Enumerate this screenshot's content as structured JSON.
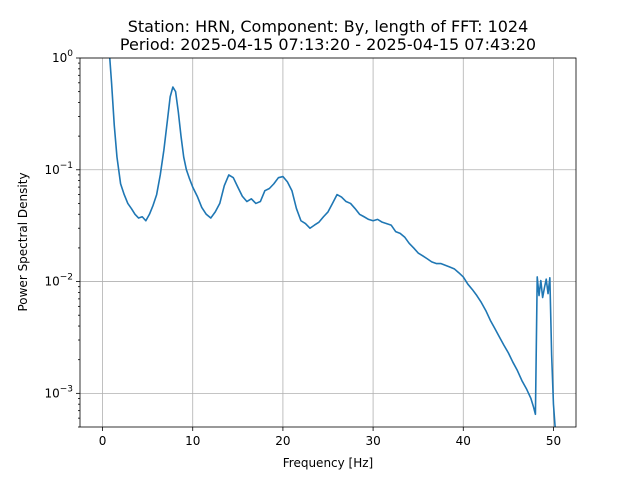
{
  "chart_data": {
    "type": "line",
    "title_line1": "Station: HRN, Component: By, length of FFT: 1024",
    "title_line2": "Period: 2025-04-15 07:13:20 - 2025-04-15 07:43:20",
    "xlabel": "Frequency [Hz]",
    "ylabel": "Power Spectral Density",
    "yscale": "log",
    "xlim": [
      -2.5,
      52.5
    ],
    "ylim": [
      0.0005,
      1
    ],
    "grid": true,
    "line_color": "#1f77b4",
    "xticks": [
      {
        "value": 0,
        "label": "0"
      },
      {
        "value": 10,
        "label": "10"
      },
      {
        "value": 20,
        "label": "20"
      },
      {
        "value": 30,
        "label": "30"
      },
      {
        "value": 40,
        "label": "40"
      },
      {
        "value": 50,
        "label": "50"
      }
    ],
    "yticks": [
      {
        "value": 0.001,
        "base": "10",
        "exp": "−3"
      },
      {
        "value": 0.01,
        "base": "10",
        "exp": "−2"
      },
      {
        "value": 0.1,
        "base": "10",
        "exp": "−1"
      },
      {
        "value": 1,
        "base": "10",
        "exp": "0"
      }
    ],
    "series": [
      {
        "x": [
          0.8,
          1.0,
          1.3,
          1.6,
          2.0,
          2.4,
          2.8,
          3.2,
          3.6,
          4.0,
          4.4,
          4.8,
          5.2,
          5.6,
          6.0,
          6.4,
          6.8,
          7.2,
          7.5,
          7.8,
          8.1,
          8.4,
          8.7,
          9.0,
          9.3,
          9.6,
          10.0,
          10.5,
          11.0,
          11.5,
          12.0,
          12.5,
          13.0,
          13.5,
          14.0,
          14.5,
          15.0,
          15.5,
          16.0,
          16.5,
          17.0,
          17.5,
          18.0,
          18.5,
          19.0,
          19.5,
          20.0,
          20.5,
          21.0,
          21.5,
          22.0,
          22.5,
          23.0,
          23.5,
          24.0,
          24.5,
          25.0,
          25.5,
          26.0,
          26.5,
          27.0,
          27.5,
          28.0,
          28.5,
          29.0,
          29.5,
          30.0,
          30.5,
          31.0,
          31.5,
          32.0,
          32.5,
          33.0,
          33.5,
          34.0,
          34.5,
          35.0,
          35.5,
          36.0,
          36.5,
          37.0,
          37.5,
          38.0,
          38.5,
          39.0,
          39.5,
          40.0,
          40.5,
          41.0,
          41.5,
          42.0,
          42.5,
          43.0,
          43.5,
          44.0,
          44.5,
          45.0,
          45.5,
          46.0,
          46.5,
          47.0,
          47.5,
          47.8,
          48.0,
          48.2,
          48.4,
          48.6,
          48.8,
          49.0,
          49.2,
          49.4,
          49.6,
          49.8,
          50.0,
          50.2
        ],
        "y": [
          1.0,
          0.6,
          0.25,
          0.13,
          0.075,
          0.06,
          0.05,
          0.045,
          0.04,
          0.037,
          0.038,
          0.035,
          0.04,
          0.048,
          0.06,
          0.09,
          0.15,
          0.28,
          0.45,
          0.55,
          0.5,
          0.33,
          0.2,
          0.13,
          0.1,
          0.085,
          0.07,
          0.058,
          0.046,
          0.04,
          0.037,
          0.042,
          0.05,
          0.072,
          0.09,
          0.085,
          0.07,
          0.058,
          0.052,
          0.055,
          0.05,
          0.052,
          0.065,
          0.068,
          0.075,
          0.085,
          0.087,
          0.078,
          0.065,
          0.045,
          0.035,
          0.033,
          0.03,
          0.032,
          0.034,
          0.038,
          0.042,
          0.05,
          0.06,
          0.057,
          0.052,
          0.05,
          0.045,
          0.04,
          0.038,
          0.036,
          0.035,
          0.036,
          0.034,
          0.033,
          0.032,
          0.028,
          0.027,
          0.025,
          0.022,
          0.02,
          0.018,
          0.017,
          0.016,
          0.015,
          0.0145,
          0.0145,
          0.014,
          0.0135,
          0.013,
          0.012,
          0.011,
          0.0095,
          0.0085,
          0.0075,
          0.0065,
          0.0055,
          0.0045,
          0.0038,
          0.0032,
          0.0027,
          0.0023,
          0.0019,
          0.0016,
          0.0013,
          0.0011,
          0.0009,
          0.00075,
          0.00065,
          0.011,
          0.0075,
          0.0102,
          0.0072,
          0.0088,
          0.0105,
          0.0078,
          0.0108,
          0.0022,
          0.0008,
          0.00048
        ]
      }
    ]
  }
}
